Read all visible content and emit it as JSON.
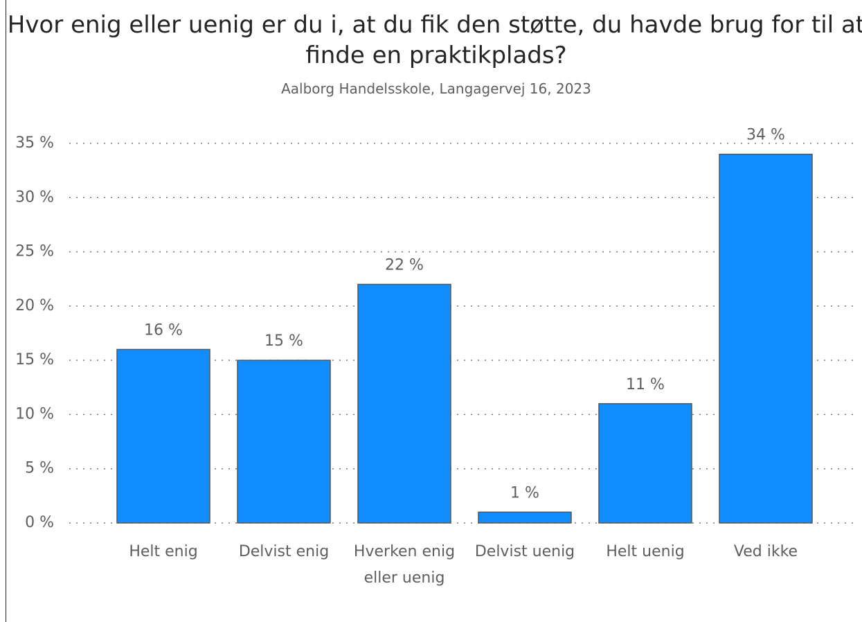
{
  "chart_data": {
    "type": "bar",
    "title": "Hvor enig eller uenig er du i, at du fik den støtte, du havde brug for til at finde en praktikplads?",
    "subtitle": "Aalborg Handelsskole, Langagervej 16, 2023",
    "categories": [
      "Helt enig",
      "Delvist enig",
      "Hverken enig eller uenig",
      "Delvist uenig",
      "Helt uenig",
      "Ved ikke"
    ],
    "values": [
      16,
      15,
      22,
      1,
      11,
      34
    ],
    "value_labels": [
      "16 %",
      "15 %",
      "22 %",
      "1 %",
      "11 %",
      "34 %"
    ],
    "color": "#118dff",
    "ylim": [
      0,
      35
    ],
    "yticks": [
      {
        "value": 0,
        "label": "0 %"
      },
      {
        "value": 5,
        "label": "5 %"
      },
      {
        "value": 10,
        "label": "10 %"
      },
      {
        "value": 15,
        "label": "15 %"
      },
      {
        "value": 20,
        "label": "20 %"
      },
      {
        "value": 25,
        "label": "25 %"
      },
      {
        "value": 30,
        "label": "30 %"
      },
      {
        "value": 35,
        "label": "35 %"
      }
    ],
    "grid": true
  }
}
